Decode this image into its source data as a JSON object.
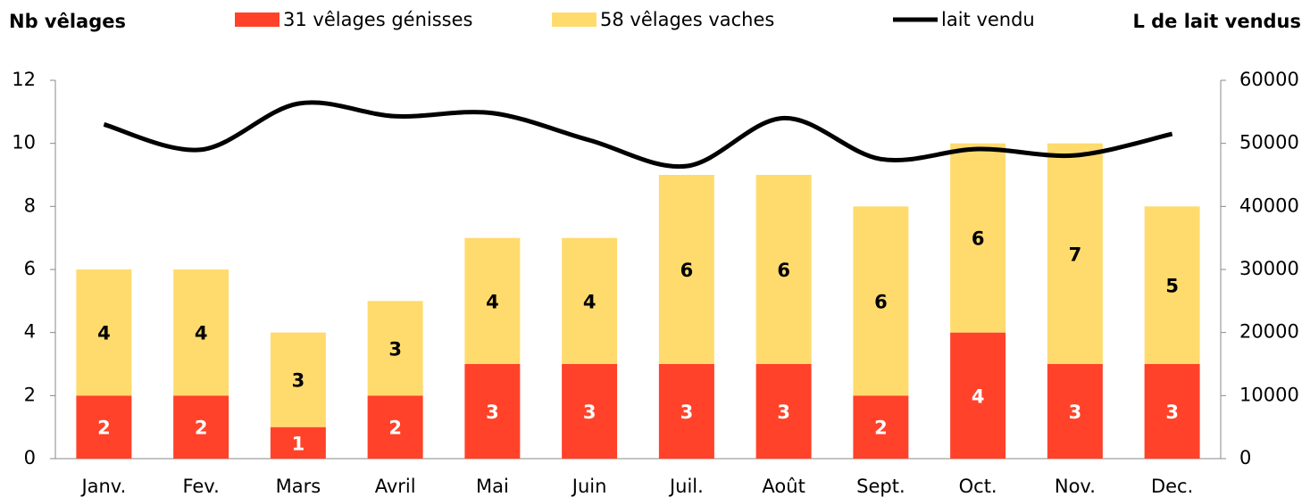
{
  "chart_data": {
    "type": "bar",
    "y_label": "Nb vêlages",
    "y2_label": "L de lait vendus",
    "categories": [
      "Janv.",
      "Fev.",
      "Mars",
      "Avril",
      "Mai",
      "Juin",
      "Juil.",
      "Août",
      "Sept.",
      "Oct.",
      "Nov.",
      "Dec."
    ],
    "stacked": true,
    "series": [
      {
        "name": "31 vêlages génisses",
        "color": "#ff4229",
        "type": "bar",
        "values": [
          2,
          2,
          1,
          2,
          3,
          3,
          3,
          3,
          2,
          4,
          3,
          3
        ]
      },
      {
        "name": "58 vêlages vaches",
        "color": "#ffdb6e",
        "type": "bar",
        "values": [
          4,
          4,
          3,
          3,
          4,
          4,
          6,
          6,
          6,
          6,
          7,
          5
        ]
      },
      {
        "name": "lait vendu",
        "color": "#000000",
        "type": "line",
        "axis": "y2",
        "smooth": true,
        "values": [
          53000,
          49000,
          56300,
          54300,
          54800,
          50500,
          46400,
          54000,
          47500,
          49100,
          48100,
          51500
        ]
      }
    ],
    "ylim": [
      0,
      12
    ],
    "yticks": [
      0,
      2,
      4,
      6,
      8,
      10,
      12
    ],
    "y2lim": [
      0,
      60000
    ],
    "y2ticks": [
      0,
      10000,
      20000,
      30000,
      40000,
      50000,
      60000
    ]
  }
}
